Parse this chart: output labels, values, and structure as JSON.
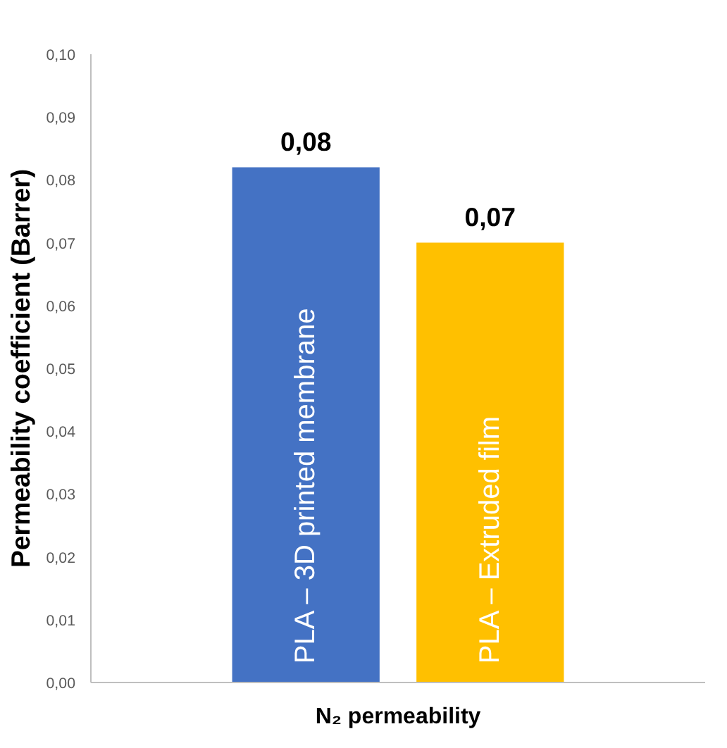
{
  "chart_data": {
    "type": "bar",
    "ylabel": "Permeability coefficient (Barrer)",
    "categories": [
      "N₂ permeability"
    ],
    "series": [
      {
        "name": "PLA – 3D printed membrane",
        "color": "#4472c4",
        "values": [
          0.082
        ],
        "value_labels": [
          "0,08"
        ]
      },
      {
        "name": "PLA – Extruded film",
        "color": "#ffc000",
        "values": [
          0.07
        ],
        "value_labels": [
          "0,07"
        ]
      }
    ],
    "ylim": [
      0,
      0.1
    ],
    "yticks": [
      {
        "value": 0,
        "label": "0,00"
      },
      {
        "value": 0.01,
        "label": "0,01"
      },
      {
        "value": 0.02,
        "label": "0,02"
      },
      {
        "value": 0.03,
        "label": "0,03"
      },
      {
        "value": 0.04,
        "label": "0,04"
      },
      {
        "value": 0.05,
        "label": "0,05"
      },
      {
        "value": 0.06,
        "label": "0,06"
      },
      {
        "value": 0.07,
        "label": "0,07"
      },
      {
        "value": 0.08,
        "label": "0,08"
      },
      {
        "value": 0.09,
        "label": "0,09"
      },
      {
        "value": 0.1,
        "label": "0,10"
      }
    ],
    "grid": false,
    "legend": false
  }
}
